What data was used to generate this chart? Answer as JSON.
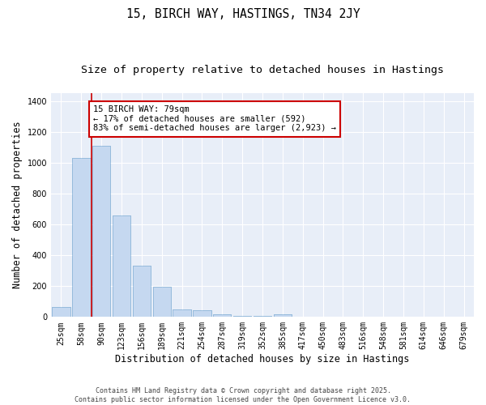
{
  "title1": "15, BIRCH WAY, HASTINGS, TN34 2JY",
  "title2": "Size of property relative to detached houses in Hastings",
  "xlabel": "Distribution of detached houses by size in Hastings",
  "ylabel": "Number of detached properties",
  "bar_color": "#c5d8f0",
  "bar_edge_color": "#8ab4d8",
  "background_color": "#e8eef8",
  "grid_color": "#ffffff",
  "fig_background": "#ffffff",
  "categories": [
    "25sqm",
    "58sqm",
    "90sqm",
    "123sqm",
    "156sqm",
    "189sqm",
    "221sqm",
    "254sqm",
    "287sqm",
    "319sqm",
    "352sqm",
    "385sqm",
    "417sqm",
    "450sqm",
    "483sqm",
    "516sqm",
    "548sqm",
    "581sqm",
    "614sqm",
    "646sqm",
    "679sqm"
  ],
  "values": [
    65,
    1030,
    1110,
    660,
    330,
    195,
    50,
    45,
    20,
    5,
    5,
    15,
    0,
    0,
    0,
    0,
    0,
    0,
    0,
    0,
    0
  ],
  "vline_x": 1.5,
  "vline_color": "#cc0000",
  "annotation_text": "15 BIRCH WAY: 79sqm\n← 17% of detached houses are smaller (592)\n83% of semi-detached houses are larger (2,923) →",
  "annotation_box_color": "#ffffff",
  "annotation_box_edge": "#cc0000",
  "ylim": [
    0,
    1450
  ],
  "yticks": [
    0,
    200,
    400,
    600,
    800,
    1000,
    1200,
    1400
  ],
  "footnote": "Contains HM Land Registry data © Crown copyright and database right 2025.\nContains public sector information licensed under the Open Government Licence v3.0.",
  "title_fontsize": 10.5,
  "subtitle_fontsize": 9.5,
  "axis_label_fontsize": 8.5,
  "tick_fontsize": 7,
  "annotation_fontsize": 7.5,
  "footnote_fontsize": 6
}
